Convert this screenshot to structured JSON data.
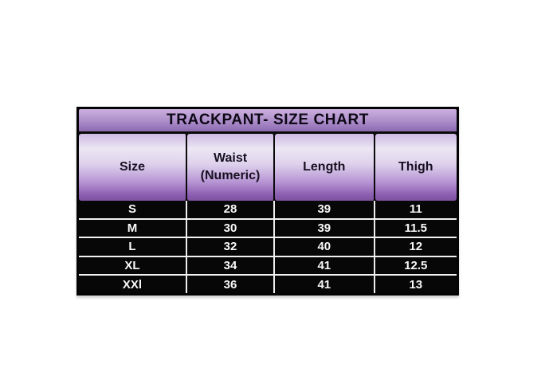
{
  "chart_data": {
    "type": "table",
    "title": "TRACKPANT- SIZE CHART",
    "headers": [
      [
        "Size"
      ],
      [
        "Waist",
        "(Numeric)"
      ],
      [
        "Length"
      ],
      [
        "Thigh"
      ]
    ],
    "columns_flat": [
      "Size",
      "Waist (Numeric)",
      "Length",
      "Thigh"
    ],
    "rows": [
      [
        "S",
        "28",
        "39",
        "11"
      ],
      [
        "M",
        "30",
        "39",
        "11.5"
      ],
      [
        "L",
        "32",
        "40",
        "12"
      ],
      [
        "XL",
        "34",
        "41",
        "12.5"
      ],
      [
        "XXl",
        "36",
        "41",
        "13"
      ]
    ]
  },
  "colors": {
    "page_background": "#ffffff",
    "title_gradient_top": "#cbb0de",
    "title_gradient_bottom": "#8a6aac",
    "header_gradient_light": "#ece6f4",
    "header_gradient_bottom": "#7d549e",
    "row_background": "#070707",
    "row_text": "#f8f8f8",
    "divider_white": "#f2f2f2",
    "border_black": "#040404"
  }
}
